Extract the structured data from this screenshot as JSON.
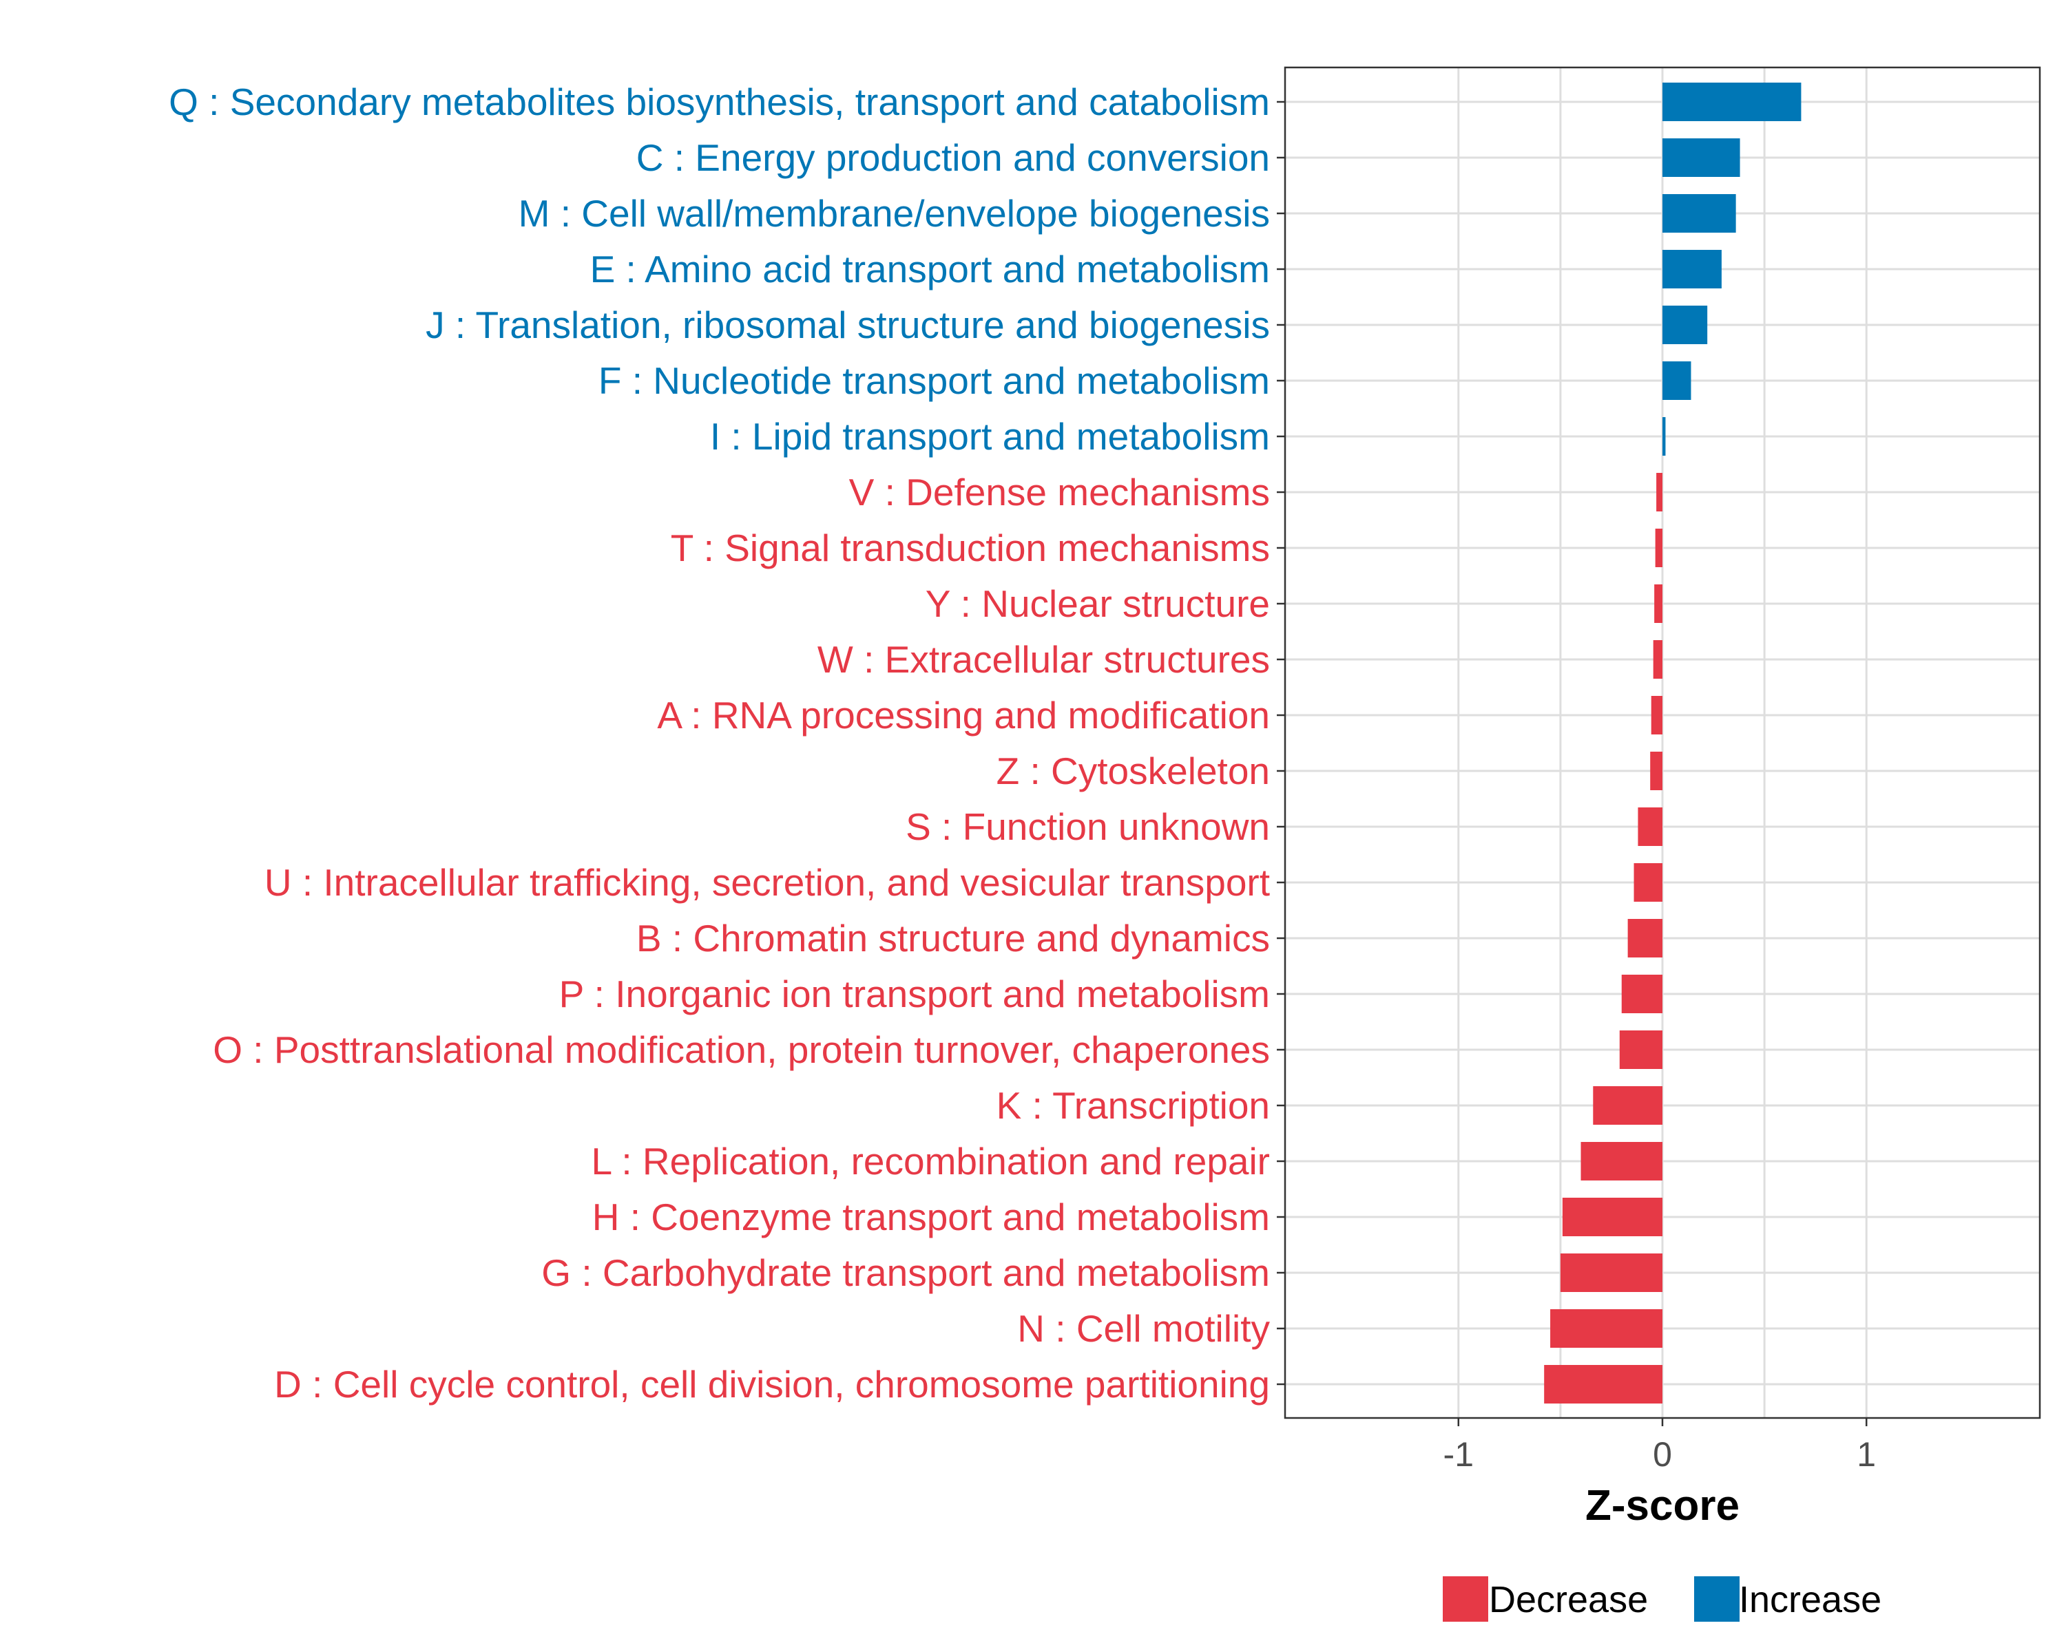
{
  "chart_data": {
    "type": "bar",
    "orientation": "horizontal",
    "title": "",
    "xlabel": "Z-score",
    "ylabel": "",
    "xlim": [
      -1.85,
      1.85
    ],
    "x_ticks": [
      -1,
      0,
      1
    ],
    "x_tick_labels": [
      "-1",
      "0",
      "1"
    ],
    "grid": true,
    "legend_position": "bottom",
    "colors": {
      "Decrease": "#e63946",
      "Increase": "#0077b6"
    },
    "legend": [
      {
        "name": "Decrease",
        "color": "#e63946"
      },
      {
        "name": "Increase",
        "color": "#0077b6"
      }
    ],
    "categories": [
      "Q : Secondary metabolites biosynthesis, transport and catabolism",
      "C : Energy production and conversion",
      "M : Cell wall/membrane/envelope biogenesis",
      "E : Amino acid transport and metabolism",
      "J : Translation, ribosomal structure and biogenesis",
      "F : Nucleotide transport and metabolism",
      "I : Lipid transport and metabolism",
      "V : Defense mechanisms",
      "T : Signal transduction mechanisms",
      "Y : Nuclear structure",
      "W : Extracellular structures",
      "A : RNA processing and modification",
      "Z : Cytoskeleton",
      "S : Function unknown",
      "U : Intracellular trafficking, secretion, and vesicular transport",
      "B : Chromatin structure and dynamics",
      "P : Inorganic ion transport and metabolism",
      "O : Posttranslational modification, protein turnover, chaperones",
      "K : Transcription",
      "L : Replication, recombination and repair",
      "H : Coenzyme transport and metabolism",
      "G : Carbohydrate transport and metabolism",
      "N : Cell motility",
      "D : Cell cycle control, cell division, chromosome partitioning"
    ],
    "values": [
      0.68,
      0.38,
      0.36,
      0.29,
      0.22,
      0.14,
      0.015,
      -0.03,
      -0.035,
      -0.04,
      -0.045,
      -0.055,
      -0.06,
      -0.12,
      -0.14,
      -0.17,
      -0.2,
      -0.21,
      -0.34,
      -0.4,
      -0.49,
      -0.5,
      -0.55,
      -0.58
    ],
    "groups": [
      "Increase",
      "Increase",
      "Increase",
      "Increase",
      "Increase",
      "Increase",
      "Increase",
      "Decrease",
      "Decrease",
      "Decrease",
      "Decrease",
      "Decrease",
      "Decrease",
      "Decrease",
      "Decrease",
      "Decrease",
      "Decrease",
      "Decrease",
      "Decrease",
      "Decrease",
      "Decrease",
      "Decrease",
      "Decrease",
      "Decrease"
    ]
  }
}
